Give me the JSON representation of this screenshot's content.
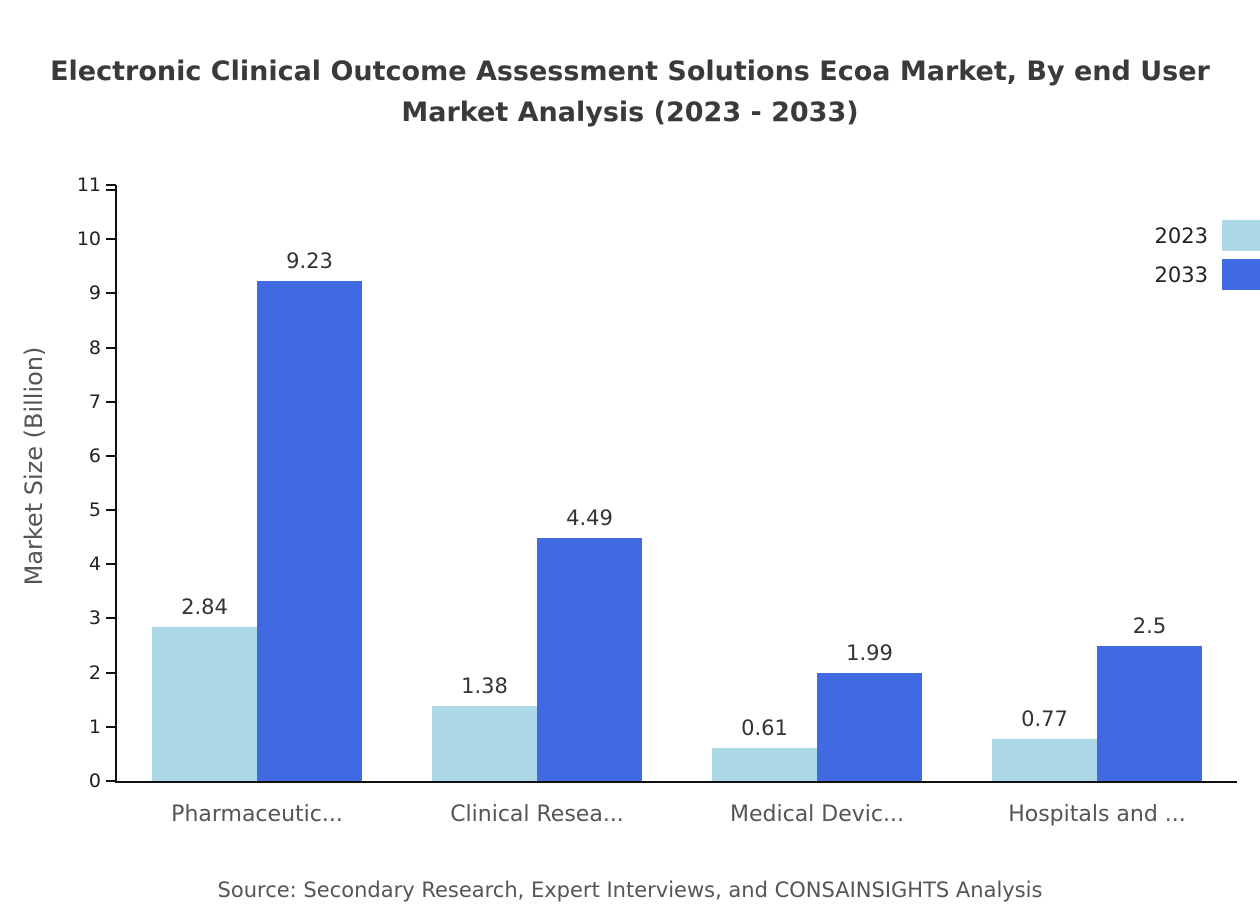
{
  "chart_data": {
    "type": "bar",
    "title_line1": "Electronic Clinical Outcome Assessment Solutions Ecoa Market, By end User",
    "title_line2": "Market Analysis (2023 - 2033)",
    "ylabel": "Market Size (Billion)",
    "ylim": [
      0,
      11
    ],
    "ytick_step": 1,
    "grid": false,
    "legend_position": "top-right",
    "categories": [
      "Pharmaceutic...",
      "Clinical Resea...",
      "Medical Devic...",
      "Hospitals and ..."
    ],
    "series": [
      {
        "name": "2023",
        "color": "#add8e6",
        "values": [
          2.84,
          1.38,
          0.61,
          0.77
        ],
        "labels": [
          "2.84",
          "1.38",
          "0.61",
          "0.77"
        ]
      },
      {
        "name": "2033",
        "color": "#4169e1",
        "values": [
          9.23,
          4.49,
          1.99,
          2.5
        ],
        "labels": [
          "9.23",
          "4.49",
          "1.99",
          "2.5"
        ]
      }
    ],
    "source": "Source: Secondary Research, Expert Interviews, and CONSAINSIGHTS Analysis"
  }
}
